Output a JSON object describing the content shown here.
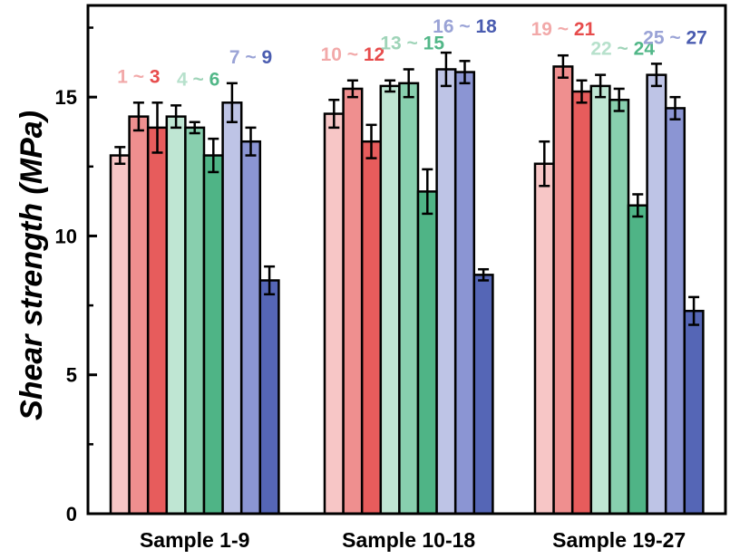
{
  "chart_data": {
    "type": "bar",
    "ylabel": "Shear strength (MPa)",
    "ylim": [
      0,
      18.3
    ],
    "yticks": [
      0,
      5,
      10,
      15
    ],
    "groups": [
      {
        "name": "Sample 1-9",
        "values": [
          12.9,
          14.3,
          13.9,
          14.3,
          13.9,
          12.9,
          14.8,
          13.4,
          8.4
        ],
        "errors": [
          0.3,
          0.5,
          0.9,
          0.4,
          0.2,
          0.6,
          0.7,
          0.5,
          0.5
        ],
        "labels": [
          {
            "parts": [
              {
                "text": "1",
                "color": "#f2a9a9"
              },
              {
                "text": " ~ ",
                "color": "#f2a9a9"
              },
              {
                "text": "3",
                "color": "#e74c4c"
              }
            ]
          },
          {
            "parts": [
              {
                "text": "4",
                "color": "#b7e1cc"
              },
              {
                "text": " ~ ",
                "color": "#9fd4b8"
              },
              {
                "text": "6",
                "color": "#52b788"
              }
            ]
          },
          {
            "parts": [
              {
                "text": "7",
                "color": "#9aa3d6"
              },
              {
                "text": " ~ ",
                "color": "#9aa3d6"
              },
              {
                "text": "9",
                "color": "#4a5cb0"
              }
            ]
          }
        ]
      },
      {
        "name": "Sample 10-18",
        "values": [
          14.4,
          15.3,
          13.4,
          15.4,
          15.5,
          11.6,
          16.0,
          15.9,
          8.6
        ],
        "errors": [
          0.5,
          0.3,
          0.6,
          0.2,
          0.5,
          0.8,
          0.6,
          0.4,
          0.2
        ],
        "labels": [
          {
            "parts": [
              {
                "text": "10",
                "color": "#f2a9a9"
              },
              {
                "text": " ~ ",
                "color": "#f2a9a9"
              },
              {
                "text": "12",
                "color": "#e74c4c"
              }
            ]
          },
          {
            "parts": [
              {
                "text": "13",
                "color": "#9fd4b8"
              },
              {
                "text": " ~ ",
                "color": "#9fd4b8"
              },
              {
                "text": "15",
                "color": "#52b788"
              }
            ]
          },
          {
            "parts": [
              {
                "text": "16",
                "color": "#9aa3d6"
              },
              {
                "text": " ~ ",
                "color": "#9aa3d6"
              },
              {
                "text": "18",
                "color": "#4a5cb0"
              }
            ]
          }
        ]
      },
      {
        "name": "Sample 19-27",
        "values": [
          12.6,
          16.1,
          15.2,
          15.4,
          14.9,
          11.1,
          15.8,
          14.6,
          7.3
        ],
        "errors": [
          0.8,
          0.4,
          0.4,
          0.4,
          0.4,
          0.4,
          0.4,
          0.4,
          0.5
        ],
        "labels": [
          {
            "parts": [
              {
                "text": "19",
                "color": "#f2a9a9"
              },
              {
                "text": " ~ ",
                "color": "#f2a9a9"
              },
              {
                "text": "21",
                "color": "#e74c4c"
              }
            ]
          },
          {
            "parts": [
              {
                "text": "22",
                "color": "#b7e1cc"
              },
              {
                "text": " ~ ",
                "color": "#9fd4b8"
              },
              {
                "text": "24",
                "color": "#52b788"
              }
            ]
          },
          {
            "parts": [
              {
                "text": "25",
                "color": "#9aa3d6"
              },
              {
                "text": " ~ ",
                "color": "#9aa3d6"
              },
              {
                "text": "27",
                "color": "#4a5cb0"
              }
            ]
          }
        ]
      }
    ],
    "bar_colors": [
      "#f7c6c6",
      "#ef8f8f",
      "#e75c5c",
      "#bfe6d3",
      "#88cfae",
      "#4fb486",
      "#bec4e6",
      "#8b95d3",
      "#5566b6"
    ]
  }
}
